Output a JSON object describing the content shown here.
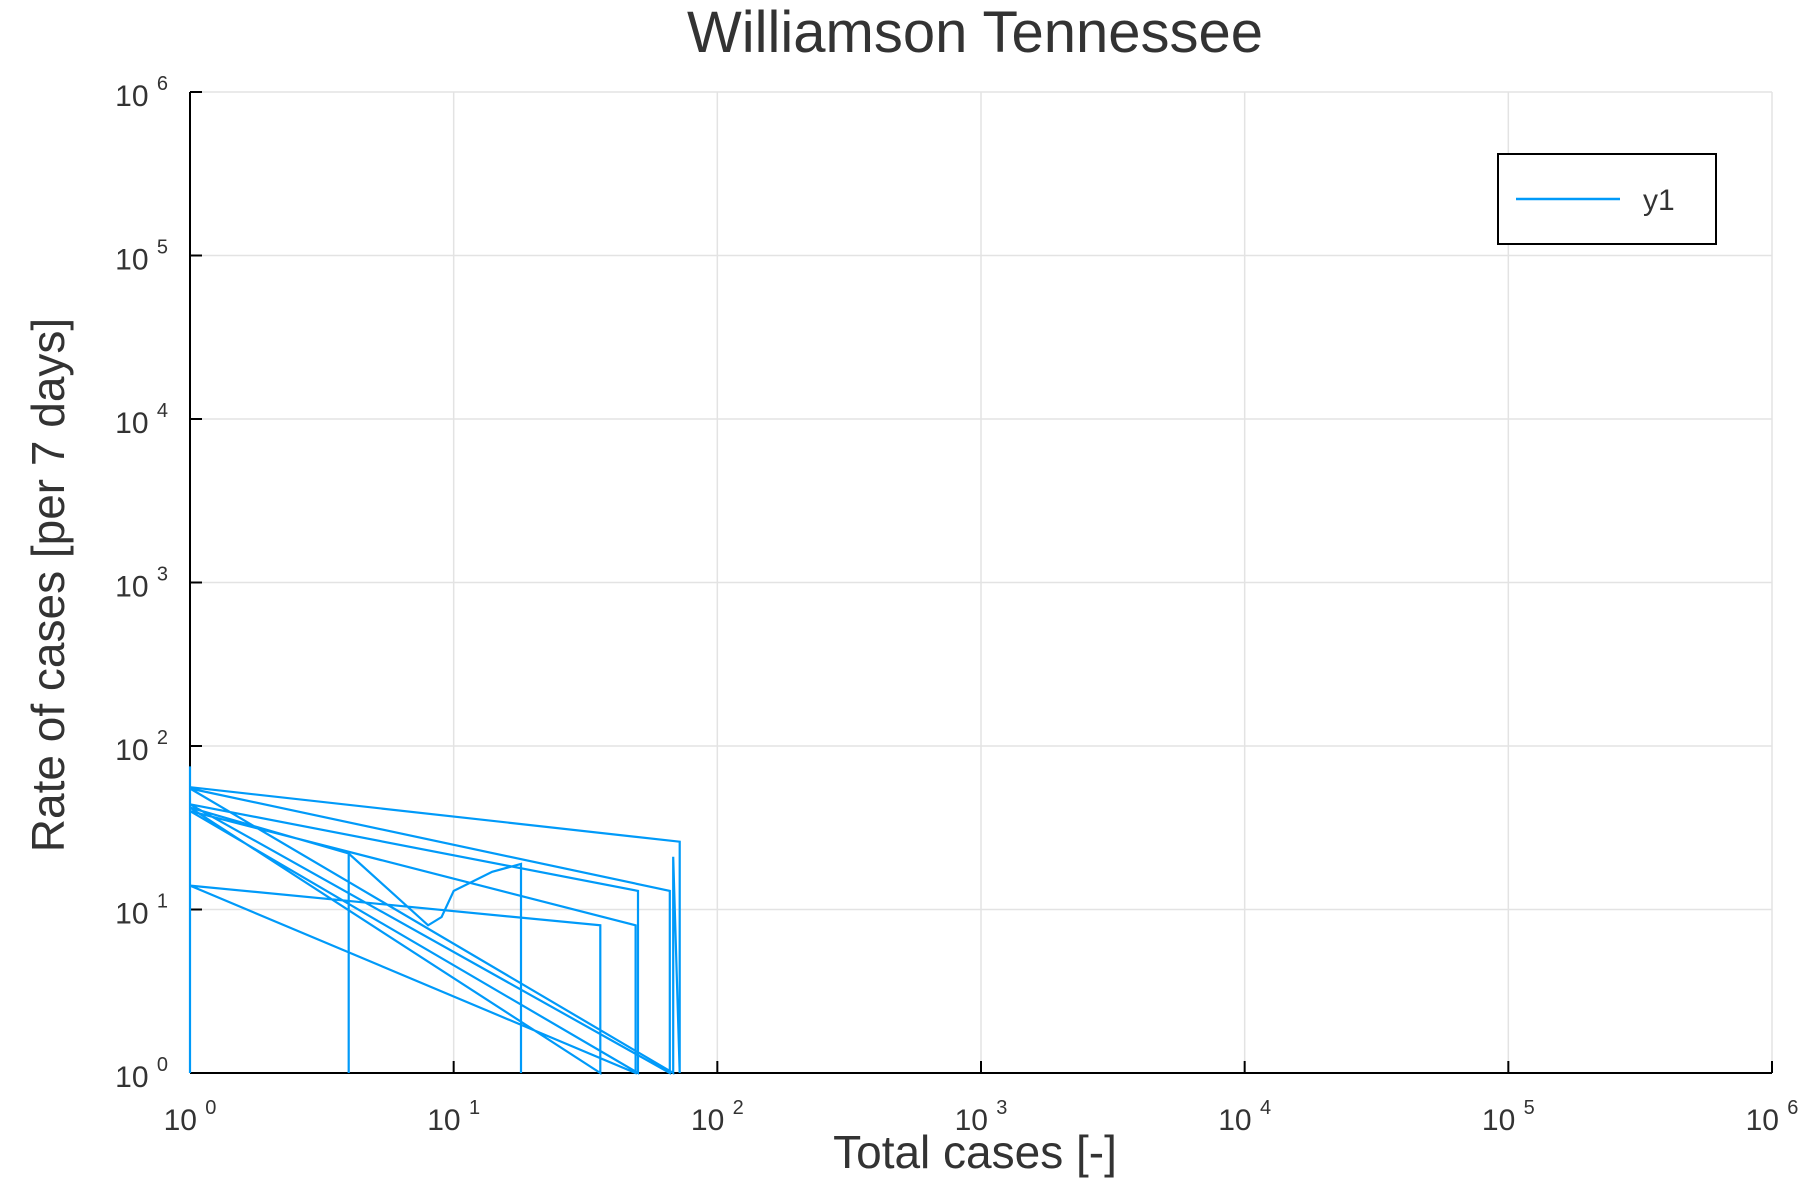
{
  "chart_data": {
    "type": "line",
    "title": "Williamson Tennessee",
    "xlabel": "Total cases [-]",
    "ylabel": "Rate of cases [per 7 days]",
    "x_scale": "log",
    "y_scale": "log",
    "xlim": [
      1,
      1000000
    ],
    "ylim": [
      1,
      1000000
    ],
    "x_ticks": [
      {
        "base": "10",
        "exp": "0"
      },
      {
        "base": "10",
        "exp": "1"
      },
      {
        "base": "10",
        "exp": "2"
      },
      {
        "base": "10",
        "exp": "3"
      },
      {
        "base": "10",
        "exp": "4"
      },
      {
        "base": "10",
        "exp": "5"
      },
      {
        "base": "10",
        "exp": "6"
      }
    ],
    "y_ticks": [
      {
        "base": "10",
        "exp": "0"
      },
      {
        "base": "10",
        "exp": "1"
      },
      {
        "base": "10",
        "exp": "2"
      },
      {
        "base": "10",
        "exp": "3"
      },
      {
        "base": "10",
        "exp": "4"
      },
      {
        "base": "10",
        "exp": "5"
      },
      {
        "base": "10",
        "exp": "6"
      }
    ],
    "grid": true,
    "legend_position": "top-right",
    "series": [
      {
        "name": "y1",
        "color": "#009AF9",
        "points": [
          [
            1,
            1
          ],
          [
            1,
            75
          ],
          [
            1,
            56
          ],
          [
            72,
            26
          ],
          [
            72,
            1
          ],
          [
            72,
            1
          ],
          [
            68,
            21
          ],
          [
            68,
            1
          ],
          [
            1,
            55
          ],
          [
            66,
            13
          ],
          [
            66,
            1
          ],
          [
            1,
            44
          ],
          [
            50,
            13
          ],
          [
            50,
            1
          ],
          [
            1,
            40
          ],
          [
            49,
            8
          ],
          [
            49,
            1
          ],
          [
            1,
            14
          ],
          [
            36,
            8
          ],
          [
            36,
            1
          ],
          [
            1,
            42
          ],
          [
            4,
            22
          ],
          [
            4,
            1
          ],
          [
            4,
            22
          ],
          [
            8,
            8
          ],
          [
            9,
            9
          ],
          [
            10,
            13
          ],
          [
            14,
            17
          ],
          [
            18,
            19
          ],
          [
            18,
            1
          ]
        ]
      }
    ]
  }
}
